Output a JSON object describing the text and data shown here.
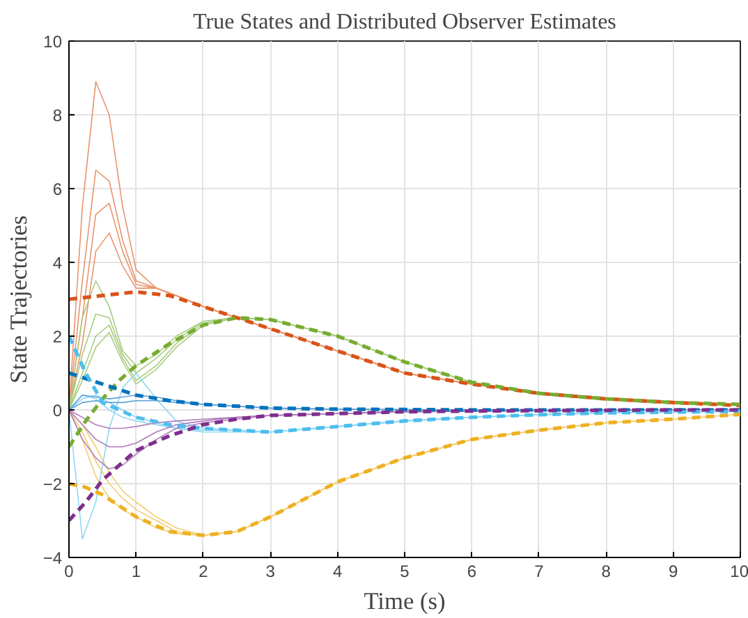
{
  "chart_data": {
    "type": "line",
    "title": "True States and Distributed Observer Estimates",
    "xlabel": "Time (s)",
    "ylabel": "State Trajectories",
    "xlim": [
      0,
      10
    ],
    "ylim": [
      -4,
      10
    ],
    "xticks": [
      0,
      1,
      2,
      3,
      4,
      5,
      6,
      7,
      8,
      9,
      10
    ],
    "yticks": [
      -4,
      -2,
      0,
      2,
      4,
      6,
      8,
      10
    ],
    "grid": true,
    "series": [
      {
        "color": "#e8946c",
        "line_style": "solid",
        "x": [
          0,
          0.2,
          0.4,
          0.6,
          0.8,
          1.0,
          1.3,
          1.6,
          2.0,
          2.5,
          3,
          4,
          5,
          6,
          7,
          8,
          9,
          10
        ],
        "values": [
          0,
          5.5,
          8.9,
          8.0,
          5.5,
          3.8,
          3.3,
          3.1,
          2.8,
          2.5,
          2.2,
          1.6,
          1.0,
          0.7,
          0.45,
          0.3,
          0.2,
          0.12
        ]
      },
      {
        "color": "#e8946c",
        "line_style": "solid",
        "x": [
          0,
          0.2,
          0.4,
          0.6,
          0.8,
          1.0,
          1.3,
          1.6,
          2.0,
          2.5,
          3,
          4,
          5,
          6,
          7,
          8,
          9
        ],
        "values": [
          0,
          3.5,
          6.5,
          6.2,
          4.6,
          3.5,
          3.3,
          3.1,
          2.8,
          2.5,
          2.2,
          1.6,
          1.0,
          0.7,
          0.45,
          0.3,
          0.2
        ]
      },
      {
        "color": "#e8946c",
        "line_style": "solid",
        "x": [
          0,
          0.2,
          0.4,
          0.6,
          0.8,
          1.0,
          1.3,
          1.6,
          2.0,
          2.5,
          3,
          4,
          5,
          6,
          7,
          8
        ],
        "values": [
          0,
          2.5,
          5.3,
          5.6,
          4.3,
          3.4,
          3.3,
          3.1,
          2.8,
          2.5,
          2.2,
          1.6,
          1.0,
          0.7,
          0.45,
          0.3
        ]
      },
      {
        "color": "#e8946c",
        "line_style": "solid",
        "x": [
          0,
          0.2,
          0.4,
          0.6,
          0.8,
          1.0,
          1.3,
          1.6,
          2.0,
          2.5,
          3,
          4,
          5,
          6,
          7
        ],
        "values": [
          0,
          1.8,
          4.3,
          4.8,
          3.9,
          3.3,
          3.3,
          3.1,
          2.8,
          2.5,
          2.2,
          1.6,
          1.0,
          0.7,
          0.45
        ]
      },
      {
        "color": "#a8cc80",
        "line_style": "solid",
        "x": [
          0,
          0.2,
          0.4,
          0.6,
          0.8,
          1.0,
          1.3,
          1.6,
          2.0,
          2.5,
          3,
          4,
          5,
          6,
          7,
          8,
          9,
          10
        ],
        "values": [
          0,
          2.5,
          3.5,
          2.8,
          1.6,
          1.2,
          1.5,
          2.0,
          2.4,
          2.5,
          2.45,
          2.0,
          1.3,
          0.75,
          0.45,
          0.3,
          0.2,
          0.15
        ]
      },
      {
        "color": "#a8cc80",
        "line_style": "solid",
        "x": [
          0,
          0.2,
          0.4,
          0.6,
          0.8,
          1.0,
          1.3,
          1.6,
          2.0,
          2.5,
          3,
          4,
          5,
          6,
          7,
          8,
          9
        ],
        "values": [
          0,
          1.5,
          2.6,
          2.5,
          1.5,
          1.0,
          1.4,
          1.9,
          2.4,
          2.5,
          2.45,
          2.0,
          1.3,
          0.75,
          0.45,
          0.3,
          0.2
        ]
      },
      {
        "color": "#a8cc80",
        "line_style": "solid",
        "x": [
          0,
          0.2,
          0.4,
          0.6,
          0.8,
          1.0,
          1.3,
          1.6,
          2.0,
          2.5,
          3,
          4,
          5,
          6,
          7,
          8
        ],
        "values": [
          0,
          1.0,
          2.0,
          2.3,
          1.4,
          0.8,
          1.2,
          1.8,
          2.35,
          2.5,
          2.45,
          2.0,
          1.3,
          0.75,
          0.45,
          0.3
        ]
      },
      {
        "color": "#a8cc80",
        "line_style": "solid",
        "x": [
          0,
          0.2,
          0.4,
          0.6,
          0.8,
          1.0,
          1.3,
          1.6,
          2.0,
          2.5,
          3,
          4,
          5,
          6,
          7
        ],
        "values": [
          0,
          0.8,
          1.7,
          2.1,
          1.3,
          0.7,
          1.1,
          1.7,
          2.3,
          2.5,
          2.45,
          2.0,
          1.3,
          0.75,
          0.45
        ]
      },
      {
        "color": "#f2cc70",
        "line_style": "solid",
        "x": [
          0,
          0.2,
          0.4,
          0.6,
          0.8,
          1.0,
          1.3,
          1.6,
          2.0,
          2.5,
          3,
          4,
          5,
          6,
          7,
          8,
          9,
          10
        ],
        "values": [
          0,
          -0.8,
          -1.8,
          -2.4,
          -2.7,
          -2.9,
          -3.2,
          -3.35,
          -3.4,
          -3.3,
          -2.9,
          -1.95,
          -1.3,
          -0.8,
          -0.55,
          -0.35,
          -0.25,
          -0.12
        ]
      },
      {
        "color": "#f2cc70",
        "line_style": "solid",
        "x": [
          0,
          0.2,
          0.4,
          0.6,
          0.8,
          1.0,
          1.3,
          1.6,
          2.0,
          2.5,
          3,
          4,
          5,
          6,
          7,
          8,
          9
        ],
        "values": [
          0,
          -0.6,
          -1.4,
          -2.0,
          -2.4,
          -2.7,
          -3.0,
          -3.3,
          -3.4,
          -3.3,
          -2.9,
          -1.95,
          -1.3,
          -0.8,
          -0.55,
          -0.35,
          -0.25
        ]
      },
      {
        "color": "#f2cc70",
        "line_style": "solid",
        "x": [
          0,
          0.2,
          0.4,
          0.6,
          0.8,
          1.0,
          1.3,
          1.6,
          2.0,
          2.5,
          3,
          4,
          5,
          6,
          7,
          8
        ],
        "values": [
          0,
          -0.4,
          -1.0,
          -1.7,
          -2.2,
          -2.5,
          -2.9,
          -3.2,
          -3.4,
          -3.3,
          -2.9,
          -1.95,
          -1.3,
          -0.8,
          -0.55,
          -0.35
        ]
      },
      {
        "color": "#8fd6f4",
        "line_style": "solid",
        "x": [
          0,
          0.2,
          0.4,
          0.6,
          0.8,
          1.0,
          1.3,
          1.6,
          2.0,
          2.5,
          3,
          4,
          5,
          6,
          7,
          8,
          9,
          10
        ],
        "values": [
          0,
          -3.5,
          -2.5,
          -0.5,
          0.6,
          1.0,
          0.3,
          -0.3,
          -0.5,
          -0.55,
          -0.6,
          -0.45,
          -0.3,
          -0.2,
          -0.13,
          -0.08,
          -0.06,
          -0.04
        ]
      },
      {
        "color": "#8fd6f4",
        "line_style": "solid",
        "x": [
          0,
          0.2,
          0.4,
          0.6,
          0.8,
          1.0,
          1.3,
          1.6,
          2.0,
          2.5,
          3,
          4,
          5,
          6,
          7,
          8,
          9
        ],
        "values": [
          0,
          0.4,
          0.3,
          0.0,
          -0.2,
          -0.3,
          -0.4,
          -0.5,
          -0.55,
          -0.55,
          -0.6,
          -0.45,
          -0.3,
          -0.2,
          -0.13,
          -0.08,
          -0.06
        ]
      },
      {
        "color": "#8fd6f4",
        "line_style": "solid",
        "x": [
          0,
          0.2,
          0.4,
          0.6,
          0.8,
          1.0,
          1.3,
          1.6,
          2.0,
          2.5,
          3,
          4,
          5,
          6,
          7,
          8
        ],
        "values": [
          0,
          0.3,
          0.4,
          0.2,
          0.0,
          -0.2,
          -0.35,
          -0.5,
          -0.6,
          -0.6,
          -0.6,
          -0.45,
          -0.3,
          -0.2,
          -0.13,
          -0.08
        ]
      },
      {
        "color": "#b07cbb",
        "line_style": "solid",
        "x": [
          0,
          0.2,
          0.4,
          0.6,
          0.8,
          1.0,
          1.3,
          1.6,
          2.0,
          2.5,
          3,
          4,
          5,
          6,
          7,
          8,
          9,
          10
        ],
        "values": [
          0,
          -0.8,
          -1.3,
          -1.6,
          -1.5,
          -1.2,
          -0.8,
          -0.5,
          -0.35,
          -0.25,
          -0.15,
          -0.1,
          -0.05,
          -0.03,
          -0.02,
          -0.01,
          0,
          0
        ]
      },
      {
        "color": "#b07cbb",
        "line_style": "solid",
        "x": [
          0,
          0.2,
          0.4,
          0.6,
          0.8,
          1.0,
          1.3,
          1.6,
          2.0,
          2.5,
          3,
          4,
          5,
          6,
          7,
          8,
          9
        ],
        "values": [
          0,
          -0.4,
          -0.8,
          -1.0,
          -1.0,
          -0.9,
          -0.6,
          -0.4,
          -0.3,
          -0.2,
          -0.15,
          -0.1,
          -0.05,
          -0.03,
          -0.02,
          -0.01,
          0
        ]
      },
      {
        "color": "#b07cbb",
        "line_style": "solid",
        "x": [
          0,
          0.2,
          0.4,
          0.6,
          0.8,
          1.0,
          1.3,
          1.6,
          2.0,
          2.5,
          3,
          4,
          5,
          6,
          7,
          8
        ],
        "values": [
          0,
          -0.2,
          -0.4,
          -0.5,
          -0.5,
          -0.45,
          -0.35,
          -0.3,
          -0.25,
          -0.2,
          -0.15,
          -0.1,
          -0.05,
          -0.03,
          -0.02,
          -0.01
        ]
      },
      {
        "color": "#5aa0d6",
        "line_style": "solid",
        "x": [
          0,
          0.2,
          0.4,
          0.6,
          0.8,
          1.0,
          1.3,
          1.6,
          2.0,
          2.5,
          3,
          4,
          5,
          6,
          7
        ],
        "values": [
          0,
          0.4,
          0.35,
          0.3,
          0.35,
          0.4,
          0.35,
          0.25,
          0.15,
          0.1,
          0.05,
          0.02,
          0.01,
          0,
          0
        ]
      },
      {
        "color": "#5aa0d6",
        "line_style": "solid",
        "x": [
          0,
          0.2,
          0.4,
          0.6,
          0.8,
          1.0,
          1.3,
          1.6,
          2.0,
          2.5,
          3,
          4,
          5,
          6
        ],
        "values": [
          0,
          0.2,
          0.25,
          0.2,
          0.2,
          0.25,
          0.25,
          0.2,
          0.15,
          0.1,
          0.05,
          0.02,
          0.01,
          0
        ]
      },
      {
        "color": "#d95319",
        "line_style": "dashed",
        "x": [
          0,
          0.25,
          0.5,
          0.75,
          1,
          1.5,
          2,
          2.5,
          3,
          4,
          5,
          6,
          7,
          8,
          9,
          10
        ],
        "values": [
          3.0,
          3.05,
          3.1,
          3.15,
          3.2,
          3.1,
          2.8,
          2.5,
          2.2,
          1.6,
          1.0,
          0.7,
          0.45,
          0.3,
          0.2,
          0.12
        ]
      },
      {
        "color": "#77ac30",
        "line_style": "dashed",
        "x": [
          0,
          0.25,
          0.5,
          0.75,
          1,
          1.5,
          2,
          2.5,
          3,
          4,
          5,
          6,
          7,
          8,
          9,
          10
        ],
        "values": [
          -1.0,
          -0.3,
          0.3,
          0.8,
          1.2,
          1.8,
          2.3,
          2.5,
          2.45,
          2.0,
          1.3,
          0.75,
          0.45,
          0.3,
          0.2,
          0.15
        ]
      },
      {
        "color": "#0072bd",
        "line_style": "dashed",
        "x": [
          0,
          0.25,
          0.5,
          0.75,
          1,
          1.5,
          2,
          2.5,
          3,
          4,
          5,
          6,
          7,
          8,
          9,
          10
        ],
        "values": [
          1.0,
          0.85,
          0.7,
          0.55,
          0.4,
          0.25,
          0.15,
          0.1,
          0.05,
          0.02,
          0.01,
          0,
          0,
          0,
          0,
          0
        ]
      },
      {
        "color": "#4dbeee",
        "line_style": "dashed",
        "x": [
          0,
          0.25,
          0.5,
          0.75,
          1,
          1.5,
          2,
          2.5,
          3,
          4,
          5,
          6,
          7,
          8,
          9,
          10
        ],
        "values": [
          2.0,
          1.0,
          0.2,
          0.0,
          -0.2,
          -0.4,
          -0.5,
          -0.55,
          -0.6,
          -0.45,
          -0.3,
          -0.2,
          -0.13,
          -0.08,
          -0.06,
          -0.04
        ]
      },
      {
        "color": "#7e2f8e",
        "line_style": "dashed",
        "x": [
          0,
          0.25,
          0.5,
          0.75,
          1,
          1.5,
          2,
          2.5,
          3,
          4,
          5,
          6,
          7,
          8,
          9,
          10
        ],
        "values": [
          -3.0,
          -2.5,
          -1.9,
          -1.5,
          -1.1,
          -0.7,
          -0.4,
          -0.25,
          -0.15,
          -0.1,
          -0.05,
          -0.03,
          -0.02,
          -0.01,
          0,
          0
        ]
      },
      {
        "color": "#edb120",
        "line_style": "dashed",
        "x": [
          0,
          0.25,
          0.5,
          0.75,
          1,
          1.5,
          2,
          2.5,
          3,
          4,
          5,
          6,
          7,
          8,
          9,
          10
        ],
        "values": [
          -2.0,
          -2.1,
          -2.3,
          -2.6,
          -2.9,
          -3.3,
          -3.4,
          -3.3,
          -2.9,
          -1.95,
          -1.3,
          -0.8,
          -0.55,
          -0.35,
          -0.25,
          -0.12
        ]
      }
    ]
  }
}
